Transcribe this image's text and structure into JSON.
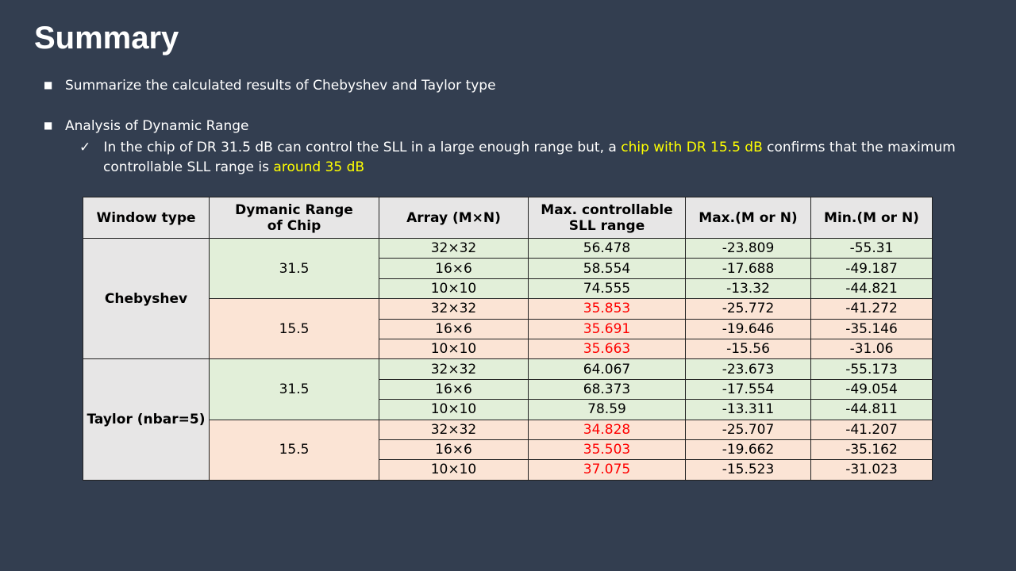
{
  "title": "Summary",
  "bullets": [
    {
      "text": "Summarize the calculated results of Chebyshev and Taylor type"
    },
    {
      "text": "Analysis of Dynamic Range",
      "sub": [
        "In the chip of DR 31.5 dB can control the SLL in a large enough range but, a ",
        "chip with DR 15.5 dB",
        " confirms that the maximum controllable SLL range is ",
        "around 35 dB"
      ]
    }
  ],
  "table": {
    "header": [
      "Window type",
      "Dymanic Range\nof Chip",
      "Array (M×N)",
      "Max. controllable\nSLL range",
      "Max.(M or N)",
      "Min.(M or N)"
    ],
    "groups": [
      {
        "window": "Chebyshev",
        "subgroups": [
          {
            "dr": "31.5",
            "fill": "#e2efd9",
            "rows": [
              [
                "32×32",
                "56.478",
                "-23.809",
                "-55.31"
              ],
              [
                "16×6",
                "58.554",
                "-17.688",
                "-49.187"
              ],
              [
                "10×10",
                "74.555",
                "-13.32",
                "-44.821"
              ]
            ]
          },
          {
            "dr": "15.5",
            "fill": "#fbe4d5",
            "sll_color": "#ff0000",
            "rows": [
              [
                "32×32",
                "35.853",
                "-25.772",
                "-41.272"
              ],
              [
                "16×6",
                "35.691",
                "-19.646",
                "-35.146"
              ],
              [
                "10×10",
                "35.663",
                "-15.56",
                "-31.06"
              ]
            ]
          }
        ]
      },
      {
        "window": "Taylor (nbar=5)",
        "subgroups": [
          {
            "dr": "31.5",
            "fill": "#e2efd9",
            "rows": [
              [
                "32×32",
                "64.067",
                "-23.673",
                "-55.173"
              ],
              [
                "16×6",
                "68.373",
                "-17.554",
                "-49.054"
              ],
              [
                "10×10",
                "78.59",
                "-13.311",
                "-44.811"
              ]
            ]
          },
          {
            "dr": "15.5",
            "fill": "#fbe4d5",
            "sll_color": "#ff0000",
            "rows": [
              [
                "32×32",
                "34.828",
                "-25.707",
                "-41.207"
              ],
              [
                "16×6",
                "35.503",
                "-19.662",
                "-35.162"
              ],
              [
                "10×10",
                "37.075",
                "-15.523",
                "-31.023"
              ]
            ]
          }
        ]
      }
    ]
  }
}
